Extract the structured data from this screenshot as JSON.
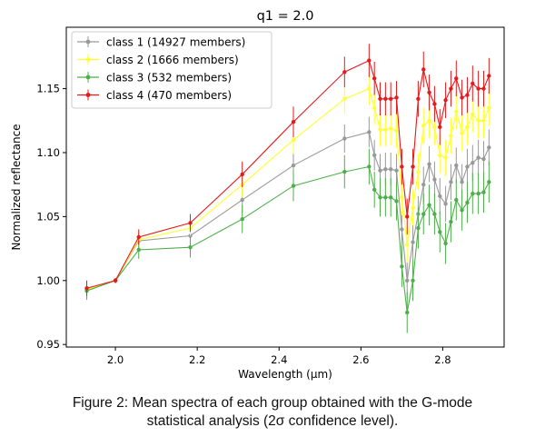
{
  "figure": {
    "caption_line1": "Figure 2: Mean spectra of each group obtained with the G-mode",
    "caption_line2": "statistical analysis (2σ confidence level)."
  },
  "chart_data": {
    "type": "line",
    "title": "q1 = 2.0",
    "xlabel": "Wavelength (μm)",
    "ylabel": "Normalized reflectance",
    "xlim": [
      1.88,
      2.95
    ],
    "ylim": [
      0.948,
      1.198
    ],
    "xticks": [
      2.0,
      2.2,
      2.4,
      2.6,
      2.8
    ],
    "xtick_labels": [
      "2.0",
      "2.2",
      "2.4",
      "2.6",
      "2.8"
    ],
    "yticks": [
      0.95,
      1.0,
      1.05,
      1.1,
      1.15
    ],
    "ytick_labels": [
      "0.95",
      "1.00",
      "1.05",
      "1.10",
      "1.15"
    ],
    "grid": false,
    "legend_position": "top-left",
    "x": [
      1.93,
      2.0,
      2.057,
      2.183,
      2.31,
      2.435,
      2.56,
      2.62,
      2.633,
      2.647,
      2.66,
      2.673,
      2.687,
      2.7,
      2.713,
      2.727,
      2.74,
      2.753,
      2.767,
      2.78,
      2.793,
      2.807,
      2.82,
      2.833,
      2.847,
      2.86,
      2.873,
      2.887,
      2.9,
      2.913
    ],
    "series": [
      {
        "name": "class 1 (14927 members)",
        "color": "#999999",
        "values": [
          0.993,
          1.0,
          1.031,
          1.035,
          1.063,
          1.09,
          1.111,
          1.116,
          1.098,
          1.086,
          1.087,
          1.087,
          1.086,
          1.04,
          1.0,
          1.03,
          1.052,
          1.075,
          1.091,
          1.079,
          1.066,
          1.06,
          1.077,
          1.09,
          1.077,
          1.089,
          1.092,
          1.096,
          1.095,
          1.104
        ],
        "errors": [
          0.006,
          0.002,
          0.006,
          0.007,
          0.01,
          0.011,
          0.011,
          0.012,
          0.012,
          0.013,
          0.013,
          0.013,
          0.013,
          0.014,
          0.014,
          0.014,
          0.014,
          0.014,
          0.014,
          0.014,
          0.014,
          0.014,
          0.014,
          0.014,
          0.014,
          0.014,
          0.014,
          0.014,
          0.014,
          0.014
        ]
      },
      {
        "name": "class 2 (1666 members)",
        "color": "#ffff33",
        "values": [
          0.993,
          1.0,
          1.032,
          1.041,
          1.075,
          1.11,
          1.142,
          1.15,
          1.135,
          1.118,
          1.118,
          1.119,
          1.117,
          1.065,
          1.028,
          1.057,
          1.085,
          1.121,
          1.125,
          1.12,
          1.098,
          1.096,
          1.113,
          1.132,
          1.115,
          1.12,
          1.13,
          1.125,
          1.125,
          1.135
        ],
        "errors": [
          0.006,
          0.002,
          0.006,
          0.006,
          0.01,
          0.011,
          0.012,
          0.013,
          0.013,
          0.013,
          0.013,
          0.013,
          0.013,
          0.014,
          0.014,
          0.014,
          0.014,
          0.014,
          0.014,
          0.014,
          0.014,
          0.014,
          0.014,
          0.014,
          0.014,
          0.014,
          0.014,
          0.014,
          0.014,
          0.014
        ]
      },
      {
        "name": "class 3 (532 members)",
        "color": "#4daf4a",
        "values": [
          0.992,
          1.0,
          1.024,
          1.026,
          1.048,
          1.074,
          1.085,
          1.089,
          1.071,
          1.065,
          1.065,
          1.065,
          1.062,
          1.011,
          0.975,
          1.0,
          1.041,
          1.052,
          1.059,
          1.052,
          1.038,
          1.029,
          1.046,
          1.063,
          1.055,
          1.061,
          1.068,
          1.068,
          1.069,
          1.077
        ],
        "errors": [
          0.007,
          0.002,
          0.007,
          0.008,
          0.011,
          0.012,
          0.013,
          0.014,
          0.014,
          0.015,
          0.015,
          0.015,
          0.015,
          0.016,
          0.016,
          0.016,
          0.016,
          0.016,
          0.016,
          0.016,
          0.016,
          0.016,
          0.016,
          0.016,
          0.016,
          0.016,
          0.016,
          0.016,
          0.016,
          0.016
        ]
      },
      {
        "name": "class 4 (470 members)",
        "color": "#e41a1c",
        "values": [
          0.994,
          1.0,
          1.034,
          1.045,
          1.083,
          1.124,
          1.163,
          1.172,
          1.158,
          1.142,
          1.142,
          1.142,
          1.143,
          1.089,
          1.05,
          1.089,
          1.142,
          1.165,
          1.147,
          1.138,
          1.12,
          1.141,
          1.15,
          1.158,
          1.143,
          1.145,
          1.154,
          1.15,
          1.15,
          1.16
        ],
        "errors": [
          0.006,
          0.002,
          0.006,
          0.007,
          0.01,
          0.012,
          0.012,
          0.013,
          0.013,
          0.013,
          0.013,
          0.013,
          0.013,
          0.014,
          0.014,
          0.014,
          0.014,
          0.014,
          0.014,
          0.014,
          0.014,
          0.014,
          0.014,
          0.014,
          0.014,
          0.014,
          0.014,
          0.014,
          0.014,
          0.014
        ]
      }
    ]
  }
}
